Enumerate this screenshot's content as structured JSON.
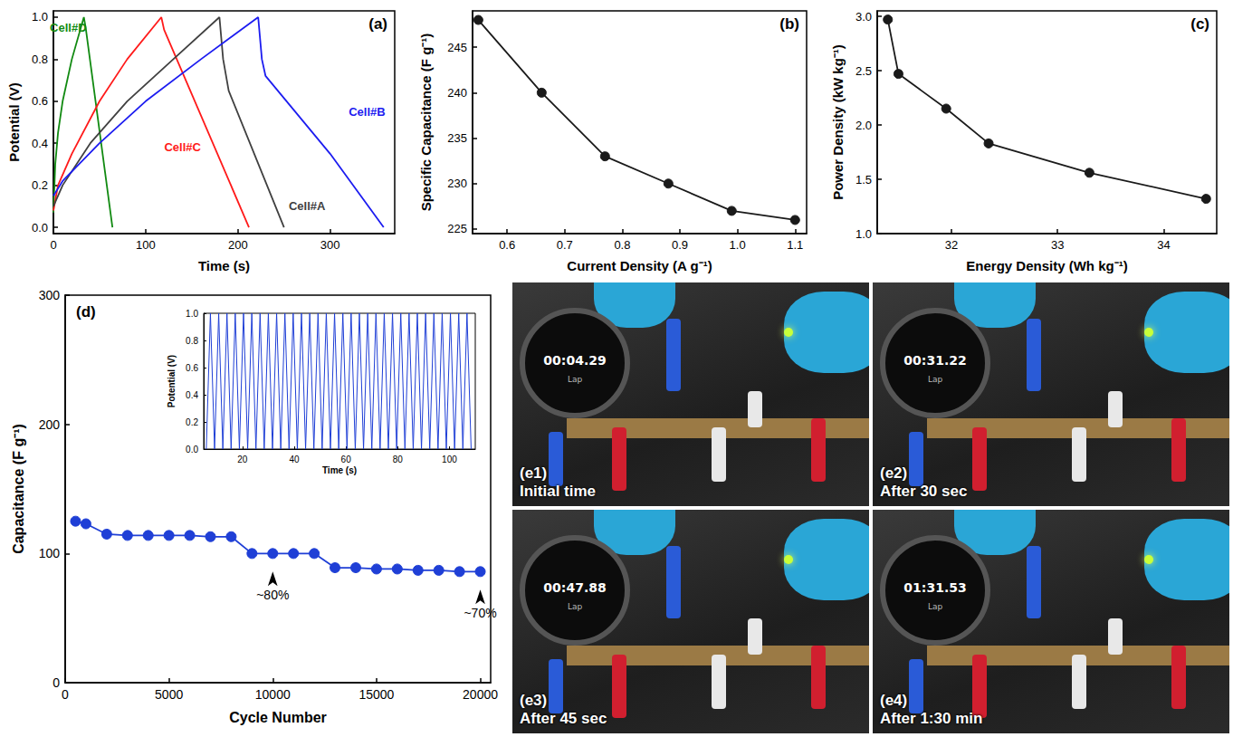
{
  "chart_data": [
    {
      "type": "line",
      "panel_label": "(a)",
      "x_label": "Time (s)",
      "y_label": "Potential (V)",
      "xlim": [
        0,
        370
      ],
      "xticks": [
        0,
        100,
        200,
        300
      ],
      "ylim": [
        -0.03,
        1.03
      ],
      "yticks": [
        {
          "value": 0,
          "label": "0.0"
        },
        0.2,
        0.4,
        0.6,
        0.8,
        {
          "value": 1,
          "label": "1.0"
        }
      ],
      "grid": false,
      "series": [
        {
          "name": "Cell#D",
          "color": "#118a11",
          "line_style": "solid",
          "x": [
            0,
            2,
            5,
            10,
            20,
            33,
            35,
            64
          ],
          "values": [
            0.07,
            0.3,
            0.45,
            0.6,
            0.8,
            1.0,
            0.95,
            0.0
          ]
        },
        {
          "name": "Cell#C",
          "color": "#ff1a1a",
          "line_style": "solid",
          "x": [
            0,
            5,
            20,
            50,
            80,
            117,
            120,
            212
          ],
          "values": [
            0.08,
            0.2,
            0.35,
            0.6,
            0.8,
            1.0,
            0.94,
            0.0
          ]
        },
        {
          "name": "Cell#A",
          "color": "#404040",
          "line_style": "solid",
          "x": [
            0,
            10,
            40,
            80,
            130,
            180,
            184,
            190,
            250
          ],
          "values": [
            0.1,
            0.2,
            0.4,
            0.6,
            0.8,
            1.0,
            0.8,
            0.65,
            0.0
          ]
        },
        {
          "name": "Cell#B",
          "color": "#1c1cf0",
          "line_style": "solid",
          "x": [
            0,
            10,
            50,
            100,
            160,
            222,
            226,
            230,
            300,
            358
          ],
          "values": [
            0.15,
            0.22,
            0.4,
            0.6,
            0.8,
            1.0,
            0.8,
            0.72,
            0.35,
            0.0
          ]
        }
      ],
      "annotations": [
        {
          "text": "Cell#D",
          "x": 16,
          "y": 0.95
        },
        {
          "text": "Cell#C",
          "x": 140,
          "y": 0.38
        },
        {
          "text": "Cell#A",
          "x": 275,
          "y": 0.1
        },
        {
          "text": "Cell#B",
          "x": 340,
          "y": 0.55
        }
      ]
    },
    {
      "type": "line",
      "panel_label": "(b)",
      "x_label": "Current Density (A g⁻¹)",
      "y_label": "Specific Capacitance (F g⁻¹)",
      "xlim": [
        0.54,
        1.12
      ],
      "xticks": [
        0.6,
        0.7,
        0.8,
        0.9,
        {
          "value": 1,
          "label": "1.0"
        },
        1.1
      ],
      "ylim": [
        224.5,
        249
      ],
      "yticks": [
        225,
        230,
        235,
        240,
        245
      ],
      "grid": false,
      "color": "#1a1a1a",
      "marker": "circle",
      "line_style": "solid",
      "x": [
        0.55,
        0.66,
        0.77,
        0.88,
        0.99,
        1.1
      ],
      "values": [
        248,
        240,
        233,
        230,
        227,
        226
      ]
    },
    {
      "type": "line",
      "panel_label": "(c)",
      "x_label": "Energy Density (Wh kg⁻¹)",
      "y_label": "Power Density (kW kg⁻¹)",
      "xlim": [
        31.3,
        34.5
      ],
      "xticks": [
        32,
        33,
        34
      ],
      "ylim": [
        1.0,
        3.05
      ],
      "yticks": [
        {
          "value": 1,
          "label": "1.0"
        },
        1.5,
        {
          "value": 2,
          "label": "2.0"
        },
        2.5,
        {
          "value": 3,
          "label": "3.0"
        }
      ],
      "grid": false,
      "color": "#1a1a1a",
      "marker": "circle",
      "line_style": "solid",
      "x": [
        31.4,
        31.5,
        31.95,
        32.35,
        33.3,
        34.4
      ],
      "values": [
        2.97,
        2.47,
        2.15,
        1.83,
        1.56,
        1.32
      ]
    },
    {
      "type": "line",
      "panel_label": "(d)",
      "x_label": "Cycle Number",
      "y_label": "Capacitance (F g⁻¹)",
      "xlim": [
        0,
        20500
      ],
      "xticks": [
        0,
        5000,
        10000,
        15000,
        20000
      ],
      "ylim": [
        0,
        300
      ],
      "yticks": [
        0,
        100,
        200,
        300
      ],
      "grid": false,
      "color": "#1f3fd6",
      "marker": "circle",
      "line_style": "solid",
      "x": [
        500,
        1000,
        2000,
        3000,
        4000,
        5000,
        6000,
        7000,
        8000,
        9000,
        10000,
        11000,
        12000,
        13000,
        14000,
        15000,
        16000,
        17000,
        18000,
        19000,
        20000
      ],
      "values": [
        125,
        123,
        115,
        114,
        114,
        114,
        114,
        113,
        113,
        100,
        100,
        100,
        100,
        89,
        89,
        88,
        88,
        87,
        87,
        86,
        86
      ],
      "annotations": [
        {
          "text": "~80%",
          "x": 10000,
          "y": 100
        },
        {
          "text": "~70%",
          "x": 20000,
          "y": 86
        }
      ],
      "inset": {
        "type": "line",
        "x_label": "Time (s)",
        "y_label": "Potential (V)",
        "xlim": [
          5,
          110
        ],
        "xticks": [
          20,
          40,
          60,
          80,
          100
        ],
        "ylim": [
          0,
          1
        ],
        "yticks": [
          {
            "value": 0,
            "label": "0.0"
          },
          0.2,
          0.4,
          0.6,
          0.8,
          {
            "value": 1,
            "label": "1.0"
          }
        ],
        "grid": false,
        "color": "#1f3fd6",
        "line_style": "solid",
        "x": [
          6.0,
          7.6,
          9.2,
          10.8,
          12.4,
          14.0,
          15.6,
          17.2,
          18.8,
          20.4,
          22.0,
          23.6,
          25.2,
          26.8,
          28.4,
          30.0,
          31.6,
          33.2,
          34.8,
          36.4,
          38.0,
          39.6,
          41.2,
          42.8,
          44.4,
          46.0,
          47.6,
          49.2,
          50.8,
          52.4,
          54.0,
          55.6,
          57.2,
          58.8,
          60.4,
          62.0,
          63.6,
          65.2,
          66.8,
          68.4,
          70.0,
          71.6,
          73.2,
          74.8,
          76.4,
          78.0,
          79.6,
          81.2,
          82.8,
          84.4,
          86.0,
          87.6,
          89.2,
          90.8,
          92.4,
          94.0,
          95.6,
          97.2,
          98.8,
          100.4,
          102.0,
          103.6,
          105.2,
          106.8,
          108.4
        ],
        "values": [
          0,
          1,
          0,
          1,
          0,
          1,
          0,
          1,
          0,
          1,
          0,
          1,
          0,
          1,
          0,
          1,
          0,
          1,
          0,
          1,
          0,
          1,
          0,
          1,
          0,
          1,
          0,
          1,
          0,
          1,
          0,
          1,
          0,
          1,
          0,
          1,
          0,
          1,
          0,
          1,
          0,
          1,
          0,
          1,
          0,
          1,
          0,
          1,
          0,
          1,
          0,
          1,
          0,
          1,
          0,
          1,
          0,
          1,
          0,
          1,
          0,
          1,
          0,
          1,
          0
        ]
      }
    }
  ],
  "photos": [
    {
      "label": "(e1)",
      "caption": "Initial time",
      "timer": "00:04.29",
      "watch_text": "Lap"
    },
    {
      "label": "(e2)",
      "caption": "After 30 sec",
      "timer": "00:31.22",
      "watch_text": "Lap"
    },
    {
      "label": "(e3)",
      "caption": "After 45 sec",
      "timer": "00:47.88",
      "watch_text": "Lap"
    },
    {
      "label": "(e4)",
      "caption": "After 1:30 min",
      "timer": "01:31.53",
      "watch_text": "Lap"
    }
  ]
}
